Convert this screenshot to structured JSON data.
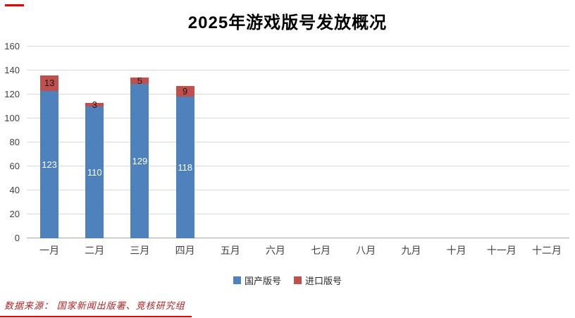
{
  "title": "2025年游戏版号发放概况",
  "footer": {
    "source": "数据来源： 国家新闻出版署、竞核研究组"
  },
  "accent": {
    "red_line": "#E60000",
    "footer_text": "#B22222"
  },
  "chart_data": {
    "type": "bar",
    "stacked": true,
    "title": "2025年游戏版号发放概况",
    "categories": [
      "一月",
      "二月",
      "三月",
      "四月",
      "五月",
      "六月",
      "七月",
      "八月",
      "九月",
      "十月",
      "十一月",
      "十二月"
    ],
    "series": [
      {
        "key": "domestic",
        "name": "国产版号",
        "color": "#4F81BD",
        "label_color": "#FFFFFF",
        "values": [
          123,
          110,
          129,
          118,
          null,
          null,
          null,
          null,
          null,
          null,
          null,
          null
        ]
      },
      {
        "key": "imported",
        "name": "进口版号",
        "color": "#C0504D",
        "label_color": "#1A1A1A",
        "values": [
          13,
          3,
          5,
          9,
          null,
          null,
          null,
          null,
          null,
          null,
          null,
          null
        ]
      }
    ],
    "ylim": [
      0,
      160
    ],
    "yticks": [
      0,
      20,
      40,
      60,
      80,
      100,
      120,
      140,
      160
    ],
    "grid": true,
    "legend_position": "bottom"
  }
}
